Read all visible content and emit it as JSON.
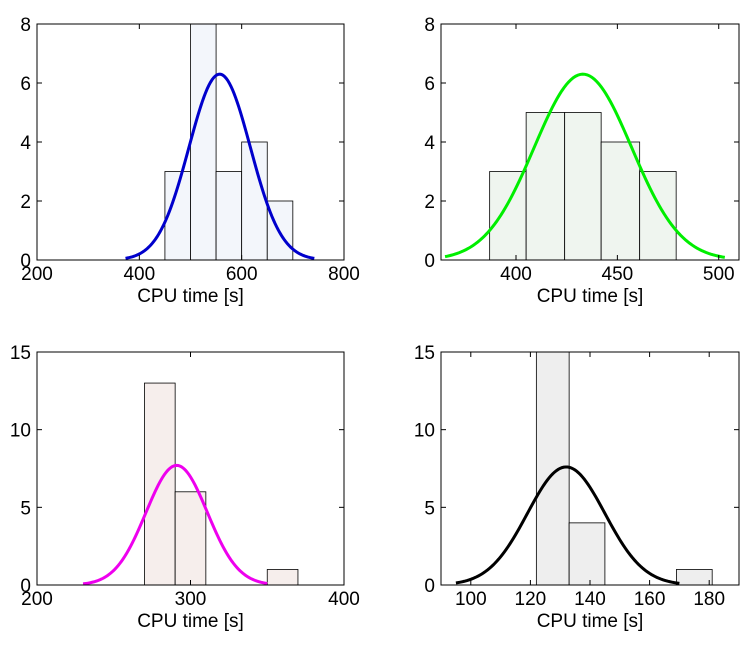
{
  "chart_data": [
    {
      "type": "histogram",
      "xlabel": "CPU time [s]",
      "xlim": [
        200,
        800
      ],
      "ylim": [
        0,
        8
      ],
      "xticks": [
        200,
        400,
        600,
        800
      ],
      "yticks": [
        0,
        2,
        4,
        6,
        8
      ],
      "bar_color": "#f3f6fb",
      "curve_color": "#0000cc",
      "bins": [
        {
          "x0": 450,
          "x1": 500,
          "count": 3
        },
        {
          "x0": 500,
          "x1": 550,
          "count": 8
        },
        {
          "x0": 550,
          "x1": 600,
          "count": 3
        },
        {
          "x0": 600,
          "x1": 650,
          "count": 4
        },
        {
          "x0": 650,
          "x1": 700,
          "count": 2
        }
      ],
      "fit": {
        "mean": 557,
        "sigma": 60,
        "peak": 6.3,
        "x_from": 373,
        "x_to": 742
      }
    },
    {
      "type": "histogram",
      "xlabel": "CPU time [s]",
      "xlim": [
        363,
        510
      ],
      "ylim": [
        0,
        8
      ],
      "xticks": [
        400,
        450,
        500
      ],
      "yticks": [
        0,
        2,
        4,
        6,
        8
      ],
      "bar_color": "#eff5ef",
      "curve_color": "#00ee00",
      "bins": [
        {
          "x0": 387,
          "x1": 405,
          "count": 3
        },
        {
          "x0": 405,
          "x1": 424,
          "count": 5
        },
        {
          "x0": 424,
          "x1": 442,
          "count": 5
        },
        {
          "x0": 442,
          "x1": 461,
          "count": 4
        },
        {
          "x0": 461,
          "x1": 479,
          "count": 3
        }
      ],
      "fit": {
        "mean": 433,
        "sigma": 24,
        "peak": 6.3,
        "x_from": 365,
        "x_to": 503
      }
    },
    {
      "type": "histogram",
      "xlabel": "CPU time [s]",
      "xlim": [
        200,
        400
      ],
      "ylim": [
        0,
        15
      ],
      "xticks": [
        200,
        300,
        400
      ],
      "yticks": [
        0,
        5,
        10,
        15
      ],
      "bar_color": "#f6eeec",
      "curve_color": "#ee00ee",
      "bins": [
        {
          "x0": 270,
          "x1": 290,
          "count": 13
        },
        {
          "x0": 290,
          "x1": 310,
          "count": 6
        },
        {
          "x0": 310,
          "x1": 330,
          "count": 0
        },
        {
          "x0": 330,
          "x1": 350,
          "count": 0
        },
        {
          "x0": 350,
          "x1": 370,
          "count": 1
        }
      ],
      "fit": {
        "mean": 291,
        "sigma": 20,
        "peak": 7.7,
        "x_from": 230,
        "x_to": 350
      }
    },
    {
      "type": "histogram",
      "xlabel": "CPU time [s]",
      "xlim": [
        90,
        190
      ],
      "ylim": [
        0,
        15
      ],
      "xticks": [
        100,
        120,
        140,
        160,
        180
      ],
      "yticks": [
        0,
        5,
        10,
        15
      ],
      "bar_color": "#eeeeee",
      "curve_color": "#000000",
      "bins": [
        {
          "x0": 122,
          "x1": 133,
          "count": 15
        },
        {
          "x0": 133,
          "x1": 145,
          "count": 4
        },
        {
          "x0": 145,
          "x1": 157,
          "count": 0
        },
        {
          "x0": 157,
          "x1": 169,
          "count": 0
        },
        {
          "x0": 169,
          "x1": 181,
          "count": 1
        }
      ],
      "fit": {
        "mean": 132,
        "sigma": 13,
        "peak": 7.6,
        "x_from": 95,
        "x_to": 170
      }
    }
  ]
}
